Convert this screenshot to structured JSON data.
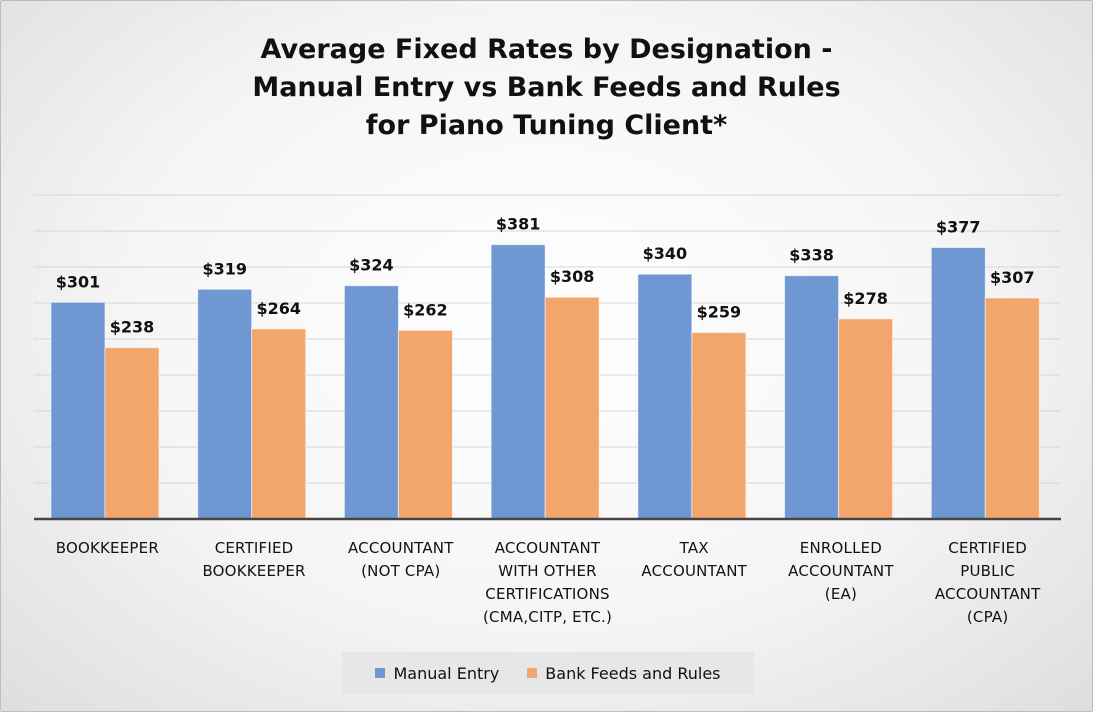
{
  "chart_data": {
    "type": "bar",
    "title_lines": [
      "Average Fixed Rates by Designation -",
      "Manual Entry vs Bank Feeds and Rules",
      "for Piano Tuning Client*"
    ],
    "categories": [
      [
        "BOOKKEEPER"
      ],
      [
        "CERTIFIED",
        "BOOKKEEPER"
      ],
      [
        "ACCOUNTANT",
        "(NOT CPA)"
      ],
      [
        "ACCOUNTANT",
        "WITH OTHER",
        "CERTIFICATIONS",
        "(CMA,CITP, ETC.)"
      ],
      [
        "TAX",
        "ACCOUNTANT"
      ],
      [
        "ENROLLED",
        "ACCOUNTANT",
        "(EA)"
      ],
      [
        "CERTIFIED",
        "PUBLIC",
        "ACCOUNTANT",
        "(CPA)"
      ]
    ],
    "series": [
      {
        "name": "Manual Entry",
        "color": "#6f98d3",
        "values": [
          301,
          319,
          324,
          381,
          340,
          338,
          377
        ],
        "labels": [
          "$301",
          "$319",
          "$324",
          "$381",
          "$340",
          "$338",
          "$377"
        ]
      },
      {
        "name": "Bank Feeds and Rules",
        "color": "#f2a66b",
        "values": [
          238,
          264,
          262,
          308,
          259,
          278,
          307
        ],
        "labels": [
          "$238",
          "$264",
          "$262",
          "$308",
          "$259",
          "$278",
          "$307"
        ]
      }
    ],
    "ylim": [
      0,
      450
    ],
    "y_gridline_step": 50,
    "y_tick_labels_shown": false,
    "grid": true,
    "legend_position": "bottom"
  }
}
